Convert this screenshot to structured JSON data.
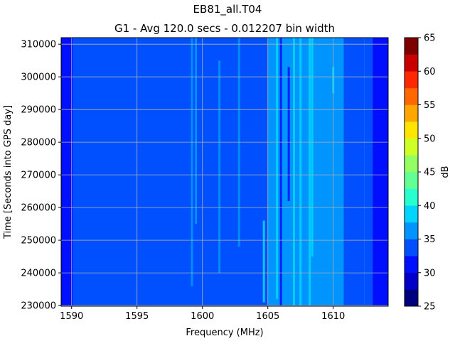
{
  "chart_data": {
    "type": "heatmap",
    "title": "EB81_all.T04",
    "subtitle": "G1 - Avg 120.0 secs - 0.012207 bin width",
    "xlabel": "Frequency (MHz)",
    "ylabel": "Time [Seconds into GPS day]",
    "xlim": [
      1589.2,
      1614.2
    ],
    "ylim": [
      229800,
      312000
    ],
    "x_ticks": [
      1590,
      1595,
      1600,
      1605,
      1610
    ],
    "y_ticks": [
      230000,
      240000,
      250000,
      260000,
      270000,
      280000,
      290000,
      300000,
      310000
    ],
    "grid": true,
    "colorbar": {
      "label": "dB",
      "range": [
        25,
        65
      ],
      "ticks": [
        25,
        30,
        35,
        40,
        45,
        50,
        55,
        60,
        65
      ],
      "levels": [
        25,
        27.5,
        30,
        32.5,
        35,
        37.5,
        40,
        42.5,
        45,
        47.5,
        50,
        52.5,
        55,
        57.5,
        60,
        62.5,
        65
      ],
      "colors": [
        "#00007f",
        "#0000c8",
        "#0010ff",
        "#0050ff",
        "#0094ff",
        "#00d4ff",
        "#29ffce",
        "#62ff94",
        "#94ff62",
        "#ceff29",
        "#ffe500",
        "#ffa700",
        "#ff6800",
        "#ff2900",
        "#c80000",
        "#7f0000"
      ]
    },
    "bands": [
      {
        "x0": 1589.2,
        "x1": 1590.1,
        "db": 31.5
      },
      {
        "x0": 1590.1,
        "x1": 1612.4,
        "db": 34.2
      },
      {
        "x0": 1605.0,
        "x1": 1605.8,
        "db": 35.3
      },
      {
        "x0": 1605.8,
        "x1": 1610.8,
        "db": 36.4
      },
      {
        "x0": 1612.4,
        "x1": 1613.0,
        "db": 34.0
      },
      {
        "x0": 1613.0,
        "x1": 1614.2,
        "db": 31.5
      }
    ],
    "streaks": [
      {
        "x": 1590.0,
        "y0": 229800,
        "y1": 312000,
        "db": 31.5
      },
      {
        "x": 1599.2,
        "y0": 236000,
        "y1": 312000,
        "db": 36.4
      },
      {
        "x": 1599.5,
        "y0": 255000,
        "y1": 312000,
        "db": 36.4
      },
      {
        "x": 1601.3,
        "y0": 240000,
        "y1": 305000,
        "db": 36.4
      },
      {
        "x": 1602.8,
        "y0": 248000,
        "y1": 312000,
        "db": 36.4
      },
      {
        "x": 1604.7,
        "y0": 231000,
        "y1": 256000,
        "db": 38.8
      },
      {
        "x": 1605.7,
        "y0": 232000,
        "y1": 312000,
        "db": 38.8
      },
      {
        "x": 1606.0,
        "y0": 230000,
        "y1": 312000,
        "db": 31.5
      },
      {
        "x": 1606.6,
        "y0": 262000,
        "y1": 303000,
        "db": 31.5
      },
      {
        "x": 1607.0,
        "y0": 229800,
        "y1": 312000,
        "db": 38.8
      },
      {
        "x": 1607.5,
        "y0": 229800,
        "y1": 312000,
        "db": 38.8
      },
      {
        "x": 1608.2,
        "y0": 229800,
        "y1": 312000,
        "db": 38.8
      },
      {
        "x": 1608.4,
        "y0": 245000,
        "y1": 312000,
        "db": 38.8
      },
      {
        "x": 1610.0,
        "y0": 295000,
        "y1": 303000,
        "db": 38.8
      }
    ]
  }
}
